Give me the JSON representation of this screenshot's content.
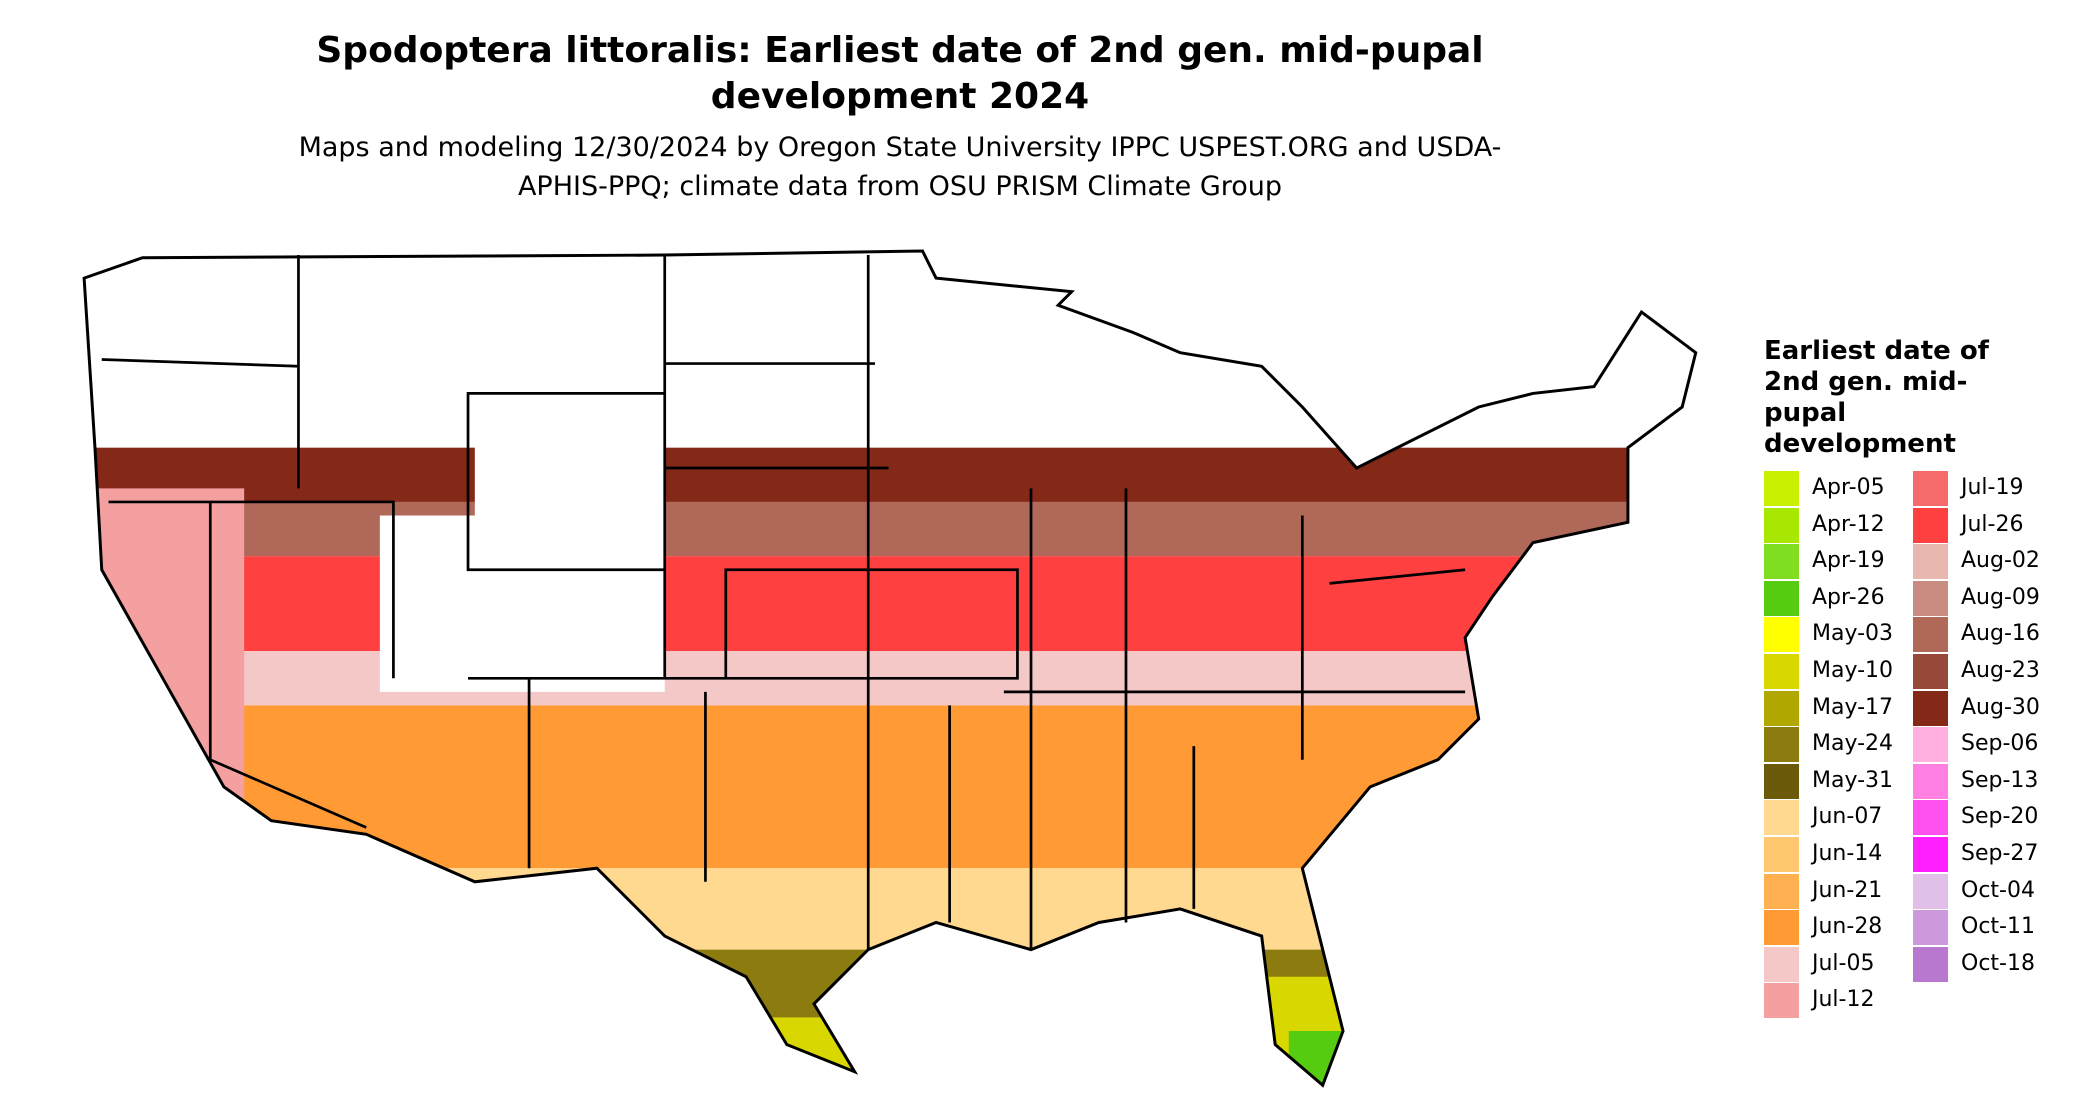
{
  "title": "Spodoptera littoralis: Earliest date of 2nd gen. mid-pupal development 2024",
  "subtitle": "Maps and modeling 12/30/2024 by Oregon State University IPPC USPEST.ORG and USDA-APHIS-PPQ; climate data from OSU PRISM Climate Group",
  "legend": {
    "title": "Earliest date of 2nd gen. mid-pupal development",
    "items": [
      {
        "label": "Apr-05",
        "color": "#c8f000"
      },
      {
        "label": "Apr-12",
        "color": "#a8e800"
      },
      {
        "label": "Apr-19",
        "color": "#80dd20"
      },
      {
        "label": "Apr-26",
        "color": "#55cc10"
      },
      {
        "label": "May-03",
        "color": "#ffff00"
      },
      {
        "label": "May-10",
        "color": "#d8d800"
      },
      {
        "label": "May-17",
        "color": "#b0a800"
      },
      {
        "label": "May-24",
        "color": "#8c7c10"
      },
      {
        "label": "May-31",
        "color": "#6a5a0a"
      },
      {
        "label": "Jun-07",
        "color": "#ffd990"
      },
      {
        "label": "Jun-14",
        "color": "#ffc870"
      },
      {
        "label": "Jun-21",
        "color": "#ffb050"
      },
      {
        "label": "Jun-28",
        "color": "#ff9a35"
      },
      {
        "label": "Jul-05",
        "color": "#f5c8c8"
      },
      {
        "label": "Jul-12",
        "color": "#f4a0a0"
      },
      {
        "label": "Jul-19",
        "color": "#f56a6a"
      },
      {
        "label": "Jul-26",
        "color": "#ff4040"
      },
      {
        "label": "Aug-02",
        "color": "#e8b8b0"
      },
      {
        "label": "Aug-09",
        "color": "#c88c80"
      },
      {
        "label": "Aug-16",
        "color": "#b06858"
      },
      {
        "label": "Aug-23",
        "color": "#984838"
      },
      {
        "label": "Aug-30",
        "color": "#842818"
      },
      {
        "label": "Sep-06",
        "color": "#ffb0e0"
      },
      {
        "label": "Sep-13",
        "color": "#ff80e0"
      },
      {
        "label": "Sep-20",
        "color": "#ff50f0"
      },
      {
        "label": "Sep-27",
        "color": "#ff20ff"
      },
      {
        "label": "Oct-04",
        "color": "#e0c0e8"
      },
      {
        "label": "Oct-11",
        "color": "#cc99dd"
      },
      {
        "label": "Oct-18",
        "color": "#b878d0"
      }
    ]
  }
}
